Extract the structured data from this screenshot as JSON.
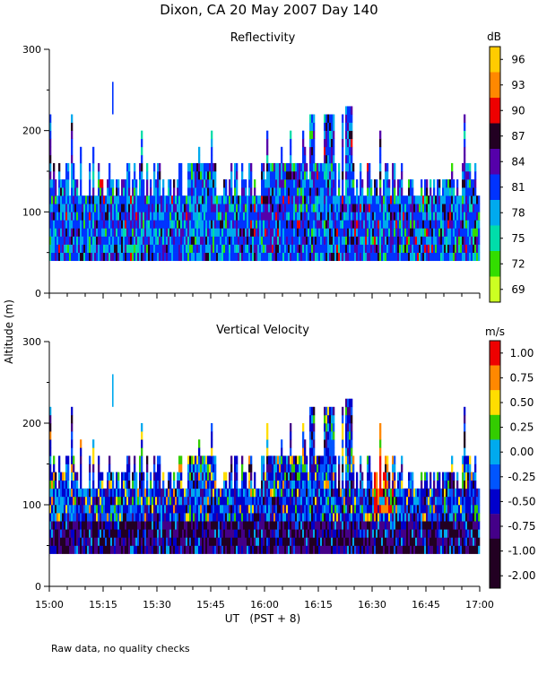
{
  "title": "Dixon, CA 20 May 2007  Day 140",
  "footer_note": "Raw data, no quality checks",
  "chart_data": [
    {
      "type": "heatmap",
      "title": "Reflectivity",
      "ylabel": "Altitude (m)",
      "xlabel": "UT   (PST + 8)",
      "ylim": [
        0,
        300
      ],
      "yticks": [
        "0",
        "100",
        "200",
        "300"
      ],
      "xlim_minutes": [
        0,
        120
      ],
      "xticks": [
        "15:00",
        "15:15",
        "15:30",
        "15:45",
        "16:00",
        "16:15",
        "16:30",
        "16:45",
        "17:00"
      ],
      "colorbar": {
        "unit": "dB",
        "labels": [
          "96",
          "93",
          "90",
          "87",
          "84",
          "81",
          "78",
          "75",
          "72",
          "69"
        ],
        "colors": [
          "#ffcc00",
          "#ff8800",
          "#ee0000",
          "#220022",
          "#5500aa",
          "#0033ff",
          "#00aaee",
          "#00ddaa",
          "#33dd00",
          "#ccff22"
        ]
      },
      "echo_base_m": 40,
      "echo_top_typical_m": [
        120,
        160
      ],
      "isolated_echo": {
        "minute": 17.5,
        "altitude_m": [
          220,
          260
        ]
      },
      "peak_echo_tops_m": [
        220,
        240
      ],
      "dominant_values_db": [
        81,
        78,
        84
      ]
    },
    {
      "type": "heatmap",
      "title": "Vertical Velocity",
      "ylabel": "Altitude (m)",
      "xlabel": "UT   (PST + 8)",
      "ylim": [
        0,
        300
      ],
      "yticks": [
        "0",
        "100",
        "200",
        "300"
      ],
      "xlim_minutes": [
        0,
        120
      ],
      "xticks": [
        "15:00",
        "15:15",
        "15:30",
        "15:45",
        "16:00",
        "16:15",
        "16:30",
        "16:45",
        "17:00"
      ],
      "colorbar": {
        "unit": "m/s",
        "labels": [
          "1.00",
          "0.75",
          "0.50",
          "0.25",
          "0.00",
          "-0.25",
          "-0.50",
          "-0.75",
          "-1.00",
          "-2.00"
        ],
        "colors": [
          "#ee0000",
          "#ff8800",
          "#ffdd00",
          "#33cc00",
          "#00aaee",
          "#0055ff",
          "#0000cc",
          "#440088",
          "#220022",
          "#220022"
        ]
      },
      "echo_base_m": 40,
      "echo_top_typical_m": [
        120,
        160
      ],
      "isolated_echo": {
        "minute": 17.5,
        "altitude_m": [
          220,
          260
        ]
      },
      "updraft_region_minutes": [
        90,
        96
      ],
      "dominant_values_ms": [
        -1.0,
        -0.75,
        -0.5
      ]
    }
  ]
}
